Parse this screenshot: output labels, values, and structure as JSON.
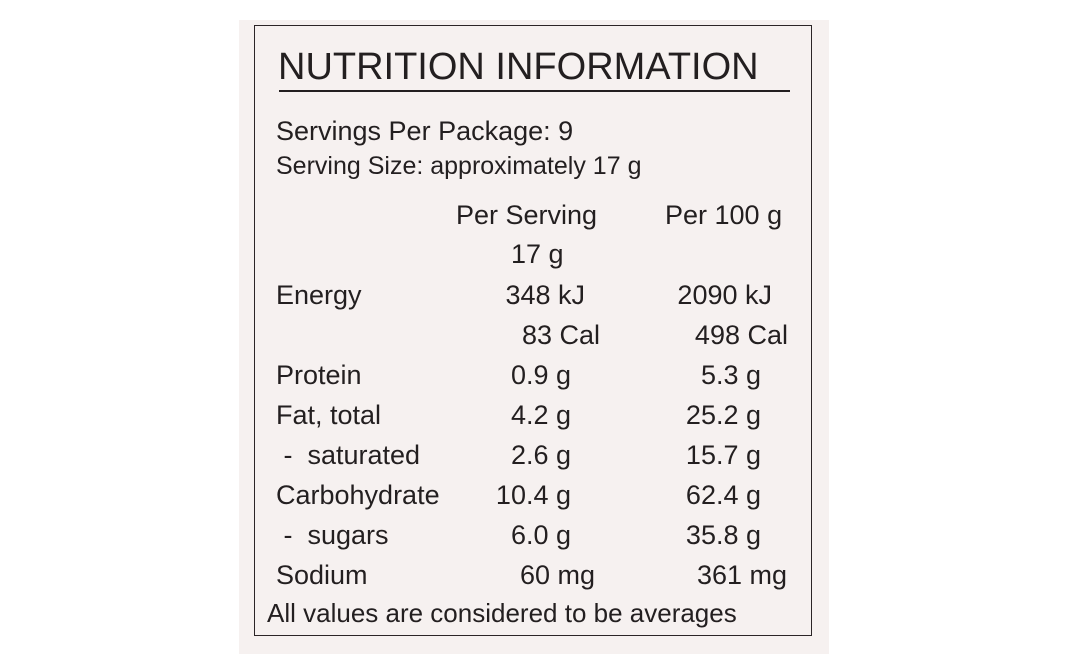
{
  "title": "NUTRITION INFORMATION",
  "servings_per_package": "Servings Per Package: 9",
  "serving_size": "Serving Size: approximately 17 g",
  "columns": {
    "per_serving_line1": "Per Serving",
    "per_serving_line2": "17 g",
    "per_100g": "Per 100 g"
  },
  "rows": [
    {
      "label": "Energy",
      "per_serving": "348 kJ",
      "per_100g": "2090 kJ"
    },
    {
      "label": "",
      "per_serving": "83 Cal",
      "per_100g": "498 Cal"
    },
    {
      "label": "Protein",
      "per_serving": "0.9 g",
      "per_100g": "5.3 g"
    },
    {
      "label": "Fat, total",
      "per_serving": "4.2 g",
      "per_100g": "25.2 g"
    },
    {
      "label": " -  saturated",
      "per_serving": "2.6 g",
      "per_100g": "15.7 g"
    },
    {
      "label": "Carbohydrate",
      "per_serving": "10.4 g",
      "per_100g": "62.4 g"
    },
    {
      "label": " -  sugars",
      "per_serving": "6.0 g",
      "per_100g": "35.8 g"
    },
    {
      "label": "Sodium",
      "per_serving": "60 mg",
      "per_100g": "361 mg"
    }
  ],
  "footer": "All values are considered to be averages"
}
